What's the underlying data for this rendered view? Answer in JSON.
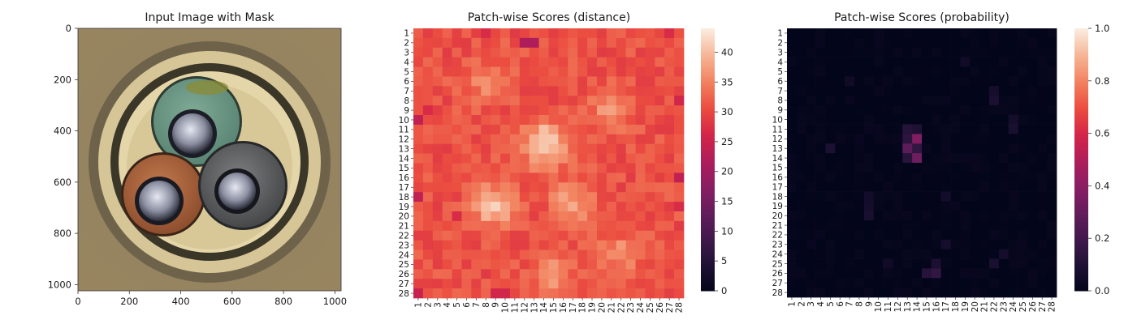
{
  "figure": {
    "panel1": {
      "title": "Input Image with Mask",
      "x_ticks": [
        "0",
        "200",
        "400",
        "600",
        "800",
        "1000"
      ],
      "y_ticks": [
        "0",
        "200",
        "400",
        "600",
        "800",
        "1000"
      ],
      "x_tick_values": [
        0,
        200,
        400,
        600,
        800,
        1000
      ],
      "y_tick_values": [
        0,
        200,
        400,
        600,
        800,
        1000
      ],
      "extent": [
        0,
        1024
      ],
      "picture": "cable cross-section with three insulated wires (green, brown, grey) inside a beige sheath"
    },
    "panel2": {
      "title": "Patch-wise Scores (distance)",
      "colorbar_ticks": [
        "0",
        "5",
        "10",
        "15",
        "20",
        "25",
        "30",
        "35",
        "40"
      ],
      "colorbar_values": [
        0,
        5,
        10,
        15,
        20,
        25,
        30,
        35,
        40
      ],
      "colorbar_max": 44,
      "colormap": "rocket"
    },
    "panel3": {
      "title": "Patch-wise Scores (probability)",
      "colorbar_ticks": [
        "0.0",
        "0.2",
        "0.4",
        "0.6",
        "0.8",
        "1.0"
      ],
      "colorbar_values": [
        0,
        0.2,
        0.4,
        0.6,
        0.8,
        1.0
      ],
      "colorbar_max": 1.0,
      "colormap": "rocket"
    },
    "grid_labels": [
      "1",
      "2",
      "3",
      "4",
      "5",
      "6",
      "7",
      "8",
      "9",
      "10",
      "11",
      "12",
      "13",
      "14",
      "15",
      "16",
      "17",
      "18",
      "19",
      "20",
      "21",
      "22",
      "23",
      "24",
      "25",
      "26",
      "27",
      "28"
    ]
  },
  "chart_data": [
    {
      "type": "image",
      "title": "Input Image with Mask",
      "xlim": [
        0,
        1024
      ],
      "ylim": [
        1024,
        0
      ],
      "xticks": [
        0,
        200,
        400,
        600,
        800,
        1000
      ],
      "yticks": [
        0,
        200,
        400,
        600,
        800,
        1000
      ]
    },
    {
      "type": "heatmap",
      "title": "Patch-wise Scores (distance)",
      "rows": 28,
      "cols": 28,
      "vmin": 0,
      "vmax": 44,
      "colorbar_ticks": [
        0,
        5,
        10,
        15,
        20,
        25,
        30,
        35,
        40
      ],
      "base_value": 31,
      "bright_regions": [
        {
          "row": 12.5,
          "col": 14,
          "peak": 43.5
        },
        {
          "row": 19,
          "col": 9,
          "peak": 41
        },
        {
          "row": 18.5,
          "col": 17,
          "peak": 38
        },
        {
          "row": 9,
          "col": 21,
          "peak": 37
        },
        {
          "row": 6,
          "col": 8,
          "peak": 36
        },
        {
          "row": 24,
          "col": 22,
          "peak": 36
        },
        {
          "row": 26,
          "col": 15,
          "peak": 37
        }
      ],
      "dark_cells": [
        {
          "row": 2,
          "col": 12,
          "value": 22
        },
        {
          "row": 2,
          "col": 13,
          "value": 22
        },
        {
          "row": 1,
          "col": 8,
          "value": 27
        },
        {
          "row": 10,
          "col": 1,
          "value": 24
        },
        {
          "row": 9,
          "col": 2,
          "value": 27
        },
        {
          "row": 18,
          "col": 1,
          "value": 24
        },
        {
          "row": 28,
          "col": 1,
          "value": 25
        },
        {
          "row": 20,
          "col": 5,
          "value": 27
        },
        {
          "row": 16,
          "col": 28,
          "value": 24
        },
        {
          "row": 28,
          "col": 9,
          "value": 26
        },
        {
          "row": 28,
          "col": 10,
          "value": 26
        },
        {
          "row": 1,
          "col": 27,
          "value": 27
        },
        {
          "row": 19,
          "col": 28,
          "value": 27
        },
        {
          "row": 8,
          "col": 28,
          "value": 26
        }
      ]
    },
    {
      "type": "heatmap",
      "title": "Patch-wise Scores (probability)",
      "rows": 28,
      "cols": 28,
      "vmin": 0,
      "vmax": 1.0,
      "colorbar_ticks": [
        0.0,
        0.2,
        0.4,
        0.6,
        0.8,
        1.0
      ],
      "base_value": 0.0,
      "cells": [
        {
          "row": 12,
          "col": 14,
          "value": 0.38
        },
        {
          "row": 14,
          "col": 14,
          "value": 0.33
        },
        {
          "row": 13,
          "col": 13,
          "value": 0.28
        },
        {
          "row": 11,
          "col": 13,
          "value": 0.12
        },
        {
          "row": 12,
          "col": 13,
          "value": 0.14
        },
        {
          "row": 13,
          "col": 14,
          "value": 0.16
        },
        {
          "row": 14,
          "col": 13,
          "value": 0.13
        },
        {
          "row": 11,
          "col": 14,
          "value": 0.1
        },
        {
          "row": 13,
          "col": 5,
          "value": 0.09
        },
        {
          "row": 26,
          "col": 16,
          "value": 0.16
        },
        {
          "row": 26,
          "col": 15,
          "value": 0.12
        },
        {
          "row": 25,
          "col": 16,
          "value": 0.09
        },
        {
          "row": 8,
          "col": 22,
          "value": 0.09
        },
        {
          "row": 7,
          "col": 22,
          "value": 0.07
        },
        {
          "row": 11,
          "col": 24,
          "value": 0.08
        },
        {
          "row": 10,
          "col": 24,
          "value": 0.07
        },
        {
          "row": 25,
          "col": 22,
          "value": 0.08
        },
        {
          "row": 24,
          "col": 23,
          "value": 0.07
        },
        {
          "row": 19,
          "col": 9,
          "value": 0.07
        },
        {
          "row": 20,
          "col": 9,
          "value": 0.08
        },
        {
          "row": 18,
          "col": 9,
          "value": 0.06
        },
        {
          "row": 23,
          "col": 17,
          "value": 0.07
        },
        {
          "row": 18,
          "col": 17,
          "value": 0.06
        },
        {
          "row": 6,
          "col": 7,
          "value": 0.05
        },
        {
          "row": 4,
          "col": 19,
          "value": 0.05
        },
        {
          "row": 25,
          "col": 11,
          "value": 0.05
        }
      ]
    }
  ]
}
